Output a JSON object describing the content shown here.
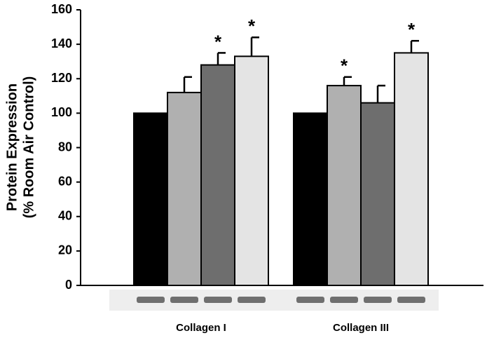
{
  "chart_data": {
    "type": "bar",
    "y_label": [
      "Protein Expression",
      "(% Room Air Control)"
    ],
    "categories": [
      "Collagen I",
      "Collagen III"
    ],
    "series": [
      {
        "color": "#000000",
        "values": [
          100,
          100
        ],
        "errors": [
          0,
          0
        ],
        "significance": [
          null,
          null
        ]
      },
      {
        "color": "#b0b0b0",
        "values": [
          112,
          116
        ],
        "errors": [
          9,
          5
        ],
        "significance": [
          null,
          "*"
        ]
      },
      {
        "color": "#6e6e6e",
        "values": [
          128,
          106
        ],
        "errors": [
          7,
          10
        ],
        "significance": [
          "*",
          null
        ]
      },
      {
        "color": "#e4e4e4",
        "values": [
          133,
          135
        ],
        "errors": [
          11,
          7
        ],
        "significance": [
          "*",
          "*"
        ]
      }
    ],
    "ylim": [
      0,
      160
    ],
    "yticks": [
      0,
      20,
      40,
      60,
      80,
      100,
      120,
      140,
      160
    ]
  }
}
